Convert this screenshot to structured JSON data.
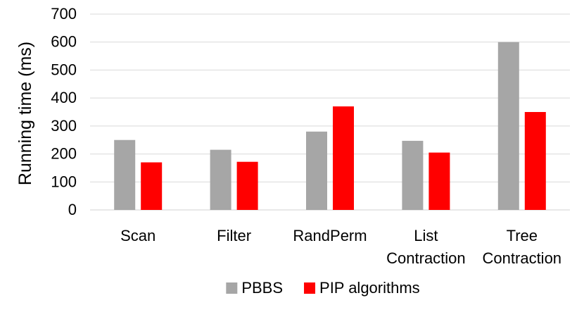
{
  "chart_data": {
    "type": "bar",
    "categories": [
      [
        "Scan"
      ],
      [
        "Filter"
      ],
      [
        "RandPerm"
      ],
      [
        "List",
        "Contraction"
      ],
      [
        "Tree",
        "Contraction"
      ]
    ],
    "series": [
      {
        "name": "PBBS",
        "color": "#a6a6a6",
        "values": [
          250,
          215,
          280,
          247,
          600
        ]
      },
      {
        "name": "PIP algorithms",
        "color": "#ff0000",
        "values": [
          170,
          172,
          370,
          205,
          350
        ]
      }
    ],
    "title": "",
    "xlabel": "",
    "ylabel": "Running time (ms)",
    "ylim": [
      0,
      700
    ],
    "yticks": [
      0,
      100,
      200,
      300,
      400,
      500,
      600,
      700
    ],
    "grid": true,
    "legend_position": "bottom"
  }
}
